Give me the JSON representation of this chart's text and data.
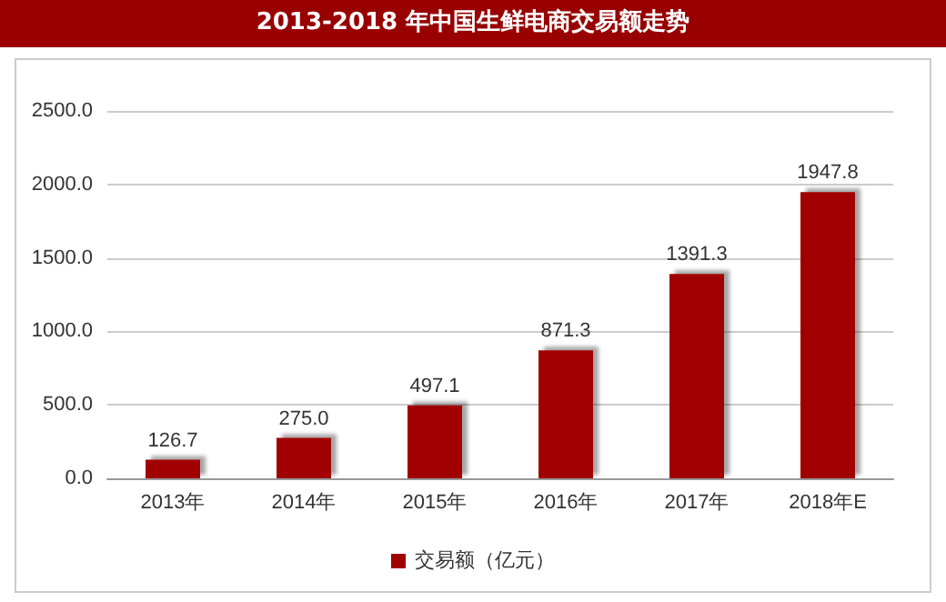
{
  "chart_data": {
    "type": "bar",
    "title": "2013-2018 年中国生鲜电商交易额走势",
    "categories": [
      "2013年",
      "2014年",
      "2015年",
      "2016年",
      "2017年",
      "2018年E"
    ],
    "series": [
      {
        "name": "交易额（亿元）",
        "color": "#a00000",
        "values": [
          126.7,
          275.0,
          497.1,
          871.3,
          1391.3,
          1947.8
        ],
        "value_labels": [
          "126.7",
          "275.0",
          "497.1",
          "871.3",
          "1391.3",
          "1947.8"
        ]
      }
    ],
    "ylim": [
      0,
      2500
    ],
    "yticks": [
      {
        "value": 0,
        "label": "0.0"
      },
      {
        "value": 500,
        "label": "500.0"
      },
      {
        "value": 1000,
        "label": "1000.0"
      },
      {
        "value": 1500,
        "label": "1500.0"
      },
      {
        "value": 2000,
        "label": "2000.0"
      },
      {
        "value": 2500,
        "label": "2500.0"
      }
    ],
    "grid": "y",
    "legend": "bottom"
  }
}
